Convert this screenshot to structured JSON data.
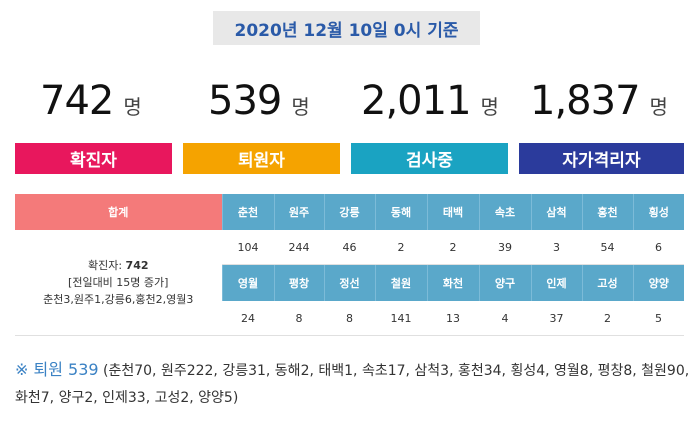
{
  "date_label": "2020년 12월 10일 0시 기준",
  "stats": [
    {
      "value": "742",
      "unit": "명",
      "label": "확진자",
      "color": "#e8175d"
    },
    {
      "value": "539",
      "unit": "명",
      "label": "퇴원자",
      "color": "#f5a300"
    },
    {
      "value": "2,011",
      "unit": "명",
      "label": "검사중",
      "color": "#1aa3c2"
    },
    {
      "value": "1,837",
      "unit": "명",
      "label": "자가격리자",
      "color": "#2b3b9c"
    }
  ],
  "table": {
    "total_header": "합계",
    "summary": {
      "line1_prefix": "확진자: ",
      "line1_value": "742",
      "line2": "[전일대비 15명 증가]",
      "line3": "춘천3,원주1,강릉6,홍천2,영월3"
    },
    "row1_regions": [
      "춘천",
      "원주",
      "강릉",
      "동해",
      "태백",
      "속초",
      "삼척",
      "홍천",
      "횡성"
    ],
    "row1_values": [
      "104",
      "244",
      "46",
      "2",
      "2",
      "39",
      "3",
      "54",
      "6"
    ],
    "row2_regions": [
      "영월",
      "평창",
      "정선",
      "철원",
      "화천",
      "양구",
      "인제",
      "고성",
      "양양"
    ],
    "row2_values": [
      "24",
      "8",
      "8",
      "141",
      "13",
      "4",
      "37",
      "2",
      "5"
    ]
  },
  "footnote": {
    "mark": "※ 퇴원 539",
    "text": " (춘천70, 원주222, 강릉31, 동해2, 태백1, 속초17, 삼척3, 홍천34, 횡성4, 영월8, 평창8, 철원90, 화천7, 양구2, 인제33, 고성2, 양양5)"
  }
}
